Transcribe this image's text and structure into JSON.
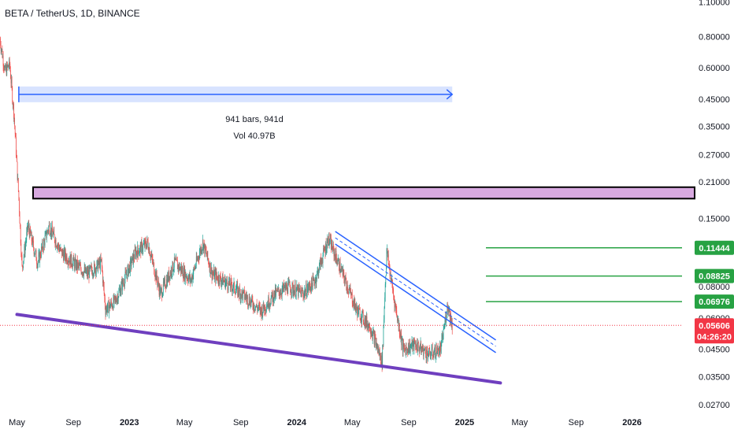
{
  "header": {
    "symbol": "BETA / TetherUS, 1D, BINANCE"
  },
  "colors": {
    "up": "#26a69a",
    "down": "#ef5350",
    "support": "#6f3fbf",
    "channel": "#2962ff",
    "level": "#27a243",
    "resistance_zone": "#d8a9e0",
    "price_badge": "#f23645"
  },
  "chart_data": {
    "type": "candlestick",
    "scale": "log",
    "y_ticks": [
      "1.10000",
      "0.80000",
      "0.60000",
      "0.45000",
      "0.35000",
      "0.27000",
      "0.21000",
      "0.15000",
      "0.08000",
      "0.06000",
      "0.04500",
      "0.03500",
      "0.02700"
    ],
    "y_tick_values": [
      1.1,
      0.8,
      0.6,
      0.45,
      0.35,
      0.27,
      0.21,
      0.15,
      0.08,
      0.06,
      0.045,
      0.035,
      0.027
    ],
    "x_ticks": [
      {
        "label": "May",
        "date": "2022-05-01",
        "bold": false
      },
      {
        "label": "Sep",
        "date": "2022-09-01",
        "bold": false
      },
      {
        "label": "2023",
        "date": "2023-01-01",
        "bold": true
      },
      {
        "label": "May",
        "date": "2023-05-01",
        "bold": false
      },
      {
        "label": "Sep",
        "date": "2023-09-01",
        "bold": false
      },
      {
        "label": "2024",
        "date": "2024-01-01",
        "bold": true
      },
      {
        "label": "May",
        "date": "2024-05-01",
        "bold": false
      },
      {
        "label": "Sep",
        "date": "2024-09-01",
        "bold": false
      },
      {
        "label": "2025",
        "date": "2025-01-01",
        "bold": true
      },
      {
        "label": "May",
        "date": "2025-05-01",
        "bold": false
      },
      {
        "label": "Sep",
        "date": "2025-09-01",
        "bold": false
      },
      {
        "label": "2026",
        "date": "2026-01-01",
        "bold": true
      }
    ],
    "x_range": [
      "2022-03-25",
      "2026-04-20"
    ],
    "y_range": [
      0.0255,
      1.12
    ],
    "price_path": [
      [
        "2022-03-25",
        0.78
      ],
      [
        "2022-04-05",
        0.58
      ],
      [
        "2022-04-15",
        0.62
      ],
      [
        "2022-04-25",
        0.38
      ],
      [
        "2022-05-05",
        0.18
      ],
      [
        "2022-05-12",
        0.095
      ],
      [
        "2022-05-25",
        0.14
      ],
      [
        "2022-06-15",
        0.1
      ],
      [
        "2022-07-10",
        0.14
      ],
      [
        "2022-08-05",
        0.11
      ],
      [
        "2022-09-01",
        0.1
      ],
      [
        "2022-10-01",
        0.09
      ],
      [
        "2022-11-01",
        0.1
      ],
      [
        "2022-11-10",
        0.065
      ],
      [
        "2022-12-01",
        0.07
      ],
      [
        "2023-01-15",
        0.11
      ],
      [
        "2023-02-10",
        0.12
      ],
      [
        "2023-03-10",
        0.075
      ],
      [
        "2023-04-10",
        0.1
      ],
      [
        "2023-05-15",
        0.085
      ],
      [
        "2023-06-10",
        0.12
      ],
      [
        "2023-07-01",
        0.09
      ],
      [
        "2023-08-15",
        0.08
      ],
      [
        "2023-09-15",
        0.072
      ],
      [
        "2023-10-15",
        0.064
      ],
      [
        "2023-11-15",
        0.075
      ],
      [
        "2023-12-15",
        0.08
      ],
      [
        "2024-01-15",
        0.075
      ],
      [
        "2024-02-10",
        0.085
      ],
      [
        "2024-03-10",
        0.125
      ],
      [
        "2024-04-10",
        0.09
      ],
      [
        "2024-05-10",
        0.065
      ],
      [
        "2024-06-10",
        0.055
      ],
      [
        "2024-07-05",
        0.04
      ],
      [
        "2024-07-15",
        0.112
      ],
      [
        "2024-08-01",
        0.07
      ],
      [
        "2024-08-20",
        0.045
      ],
      [
        "2024-09-15",
        0.047
      ],
      [
        "2024-10-15",
        0.043
      ],
      [
        "2024-11-10",
        0.045
      ],
      [
        "2024-11-25",
        0.068
      ],
      [
        "2024-12-05",
        0.056
      ]
    ],
    "last_price": "0.05606",
    "countdown": "04:26:20",
    "level_labels": [
      "0.11444",
      "0.08825",
      "0.06976"
    ],
    "levels": [
      0.11444,
      0.08825,
      0.06976
    ],
    "resistance_zone": [
      0.18,
      0.2
    ],
    "support_line": [
      [
        "2022-05-01",
        0.062
      ],
      [
        "2025-03-20",
        0.033
      ]
    ],
    "channel_line": [
      [
        "2024-03-25",
        0.133
      ],
      [
        "2025-03-10",
        0.049
      ]
    ],
    "measure": {
      "start": "2022-05-05",
      "end": "2024-12-05",
      "price": 0.47,
      "bars_label": "941 bars, 941d",
      "vol_label": "Vol 40.97B"
    }
  }
}
